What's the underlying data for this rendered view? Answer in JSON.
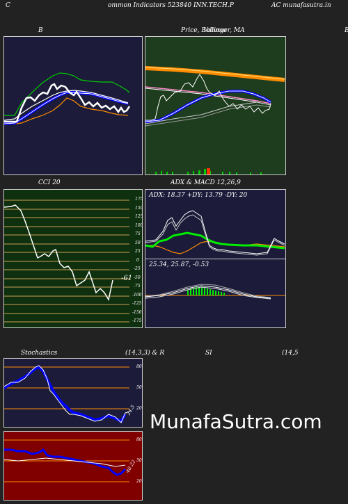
{
  "header": {
    "left": "C",
    "title": "ommon  Indicators 523840  INN.TECH.P",
    "right": "AC munafasutra.in"
  },
  "panels": {
    "bollinger": {
      "label": "B"
    },
    "price": {
      "label": "Price,  Bollinger,  MA",
      "overlay_label": "Volume",
      "right_mark": "B"
    },
    "cci": {
      "label": "CCI 20",
      "value_label": "-61",
      "ticks": [
        "175",
        "150",
        "125",
        "100",
        "75",
        "50",
        "25",
        "0",
        "-25",
        "-50",
        "-75",
        "-100",
        "-125",
        "-150",
        "-175"
      ]
    },
    "adx": {
      "label": "ADX  & MACD 12,26,9",
      "values": "ADX: 18.37  +DY: 13.79 -DY: 20"
    },
    "macd": {
      "values": "25.34,  25.87,  -0.53"
    },
    "stoch": {
      "label": "Stochastics",
      "params": "(14,3,3) & R",
      "value_label": "24.5",
      "ticks": [
        "80",
        "50",
        "20"
      ]
    },
    "rsi": {
      "label": "SI",
      "params": "(14,5",
      "value_label": "40.22",
      "ticks": [
        "80",
        "50",
        "20"
      ]
    }
  },
  "watermark": "MunafaSutra.com",
  "colors": {
    "page_bg": "#222222",
    "navy_bg": "#1c1c3a",
    "green_bg": "#1e3d1e",
    "olive_bg": "#0f300f",
    "red_bg": "#800000",
    "orange": "#ff8c00",
    "bright_green": "#00ee00",
    "blue": "#0000ff"
  }
}
